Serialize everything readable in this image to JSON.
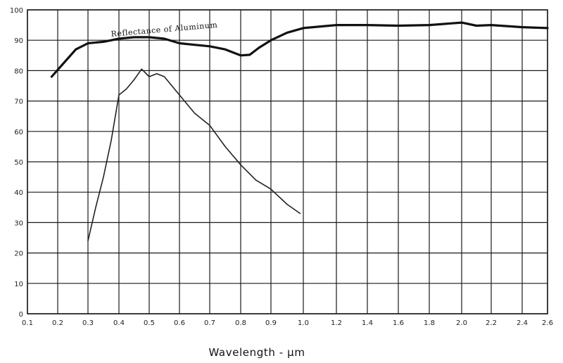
{
  "chart_data": {
    "type": "line",
    "xlabel": "Wavelength - μm",
    "ylabel": "",
    "title": "",
    "ylim": [
      0,
      100
    ],
    "grid": true,
    "x_ticks": [
      "0.1",
      "0.2",
      "0.3",
      "0.4",
      "0.5",
      "0.6",
      "0.7",
      "0.8",
      "0.9",
      "1.0",
      "1.2",
      "1.4",
      "1.6",
      "1.8",
      "2.0",
      "2.2",
      "2.4",
      "2.6"
    ],
    "y_ticks": [
      "0",
      "10",
      "20",
      "30",
      "40",
      "50",
      "60",
      "70",
      "80",
      "90",
      "100"
    ],
    "annotations": [
      {
        "text": "Reflectance of Aluminum"
      }
    ],
    "series": [
      {
        "name": "Reflectance of Aluminum",
        "x": [
          0.18,
          0.22,
          0.26,
          0.3,
          0.35,
          0.4,
          0.45,
          0.5,
          0.55,
          0.6,
          0.65,
          0.7,
          0.75,
          0.8,
          0.83,
          0.86,
          0.9,
          0.95,
          1.0,
          1.2,
          1.4,
          1.6,
          1.8,
          2.0,
          2.1,
          2.2,
          2.4,
          2.6
        ],
        "y": [
          78,
          82.5,
          87,
          89,
          89.5,
          90.5,
          91,
          91,
          90.5,
          89,
          88.5,
          88,
          87,
          85,
          85.2,
          87.5,
          90,
          92.5,
          94,
          95,
          95,
          94.8,
          95,
          95.8,
          94.8,
          95,
          94.3,
          94
        ]
      },
      {
        "name": "",
        "x": [
          0.3,
          0.325,
          0.35,
          0.375,
          0.4,
          0.425,
          0.45,
          0.475,
          0.5,
          0.525,
          0.55,
          0.6,
          0.65,
          0.7,
          0.75,
          0.8,
          0.85,
          0.9,
          0.95,
          0.99
        ],
        "y": [
          24,
          35,
          45,
          57,
          72,
          74,
          77,
          80.5,
          78,
          79,
          78,
          72,
          66,
          62,
          55,
          49,
          44,
          41,
          36,
          33
        ]
      }
    ]
  }
}
